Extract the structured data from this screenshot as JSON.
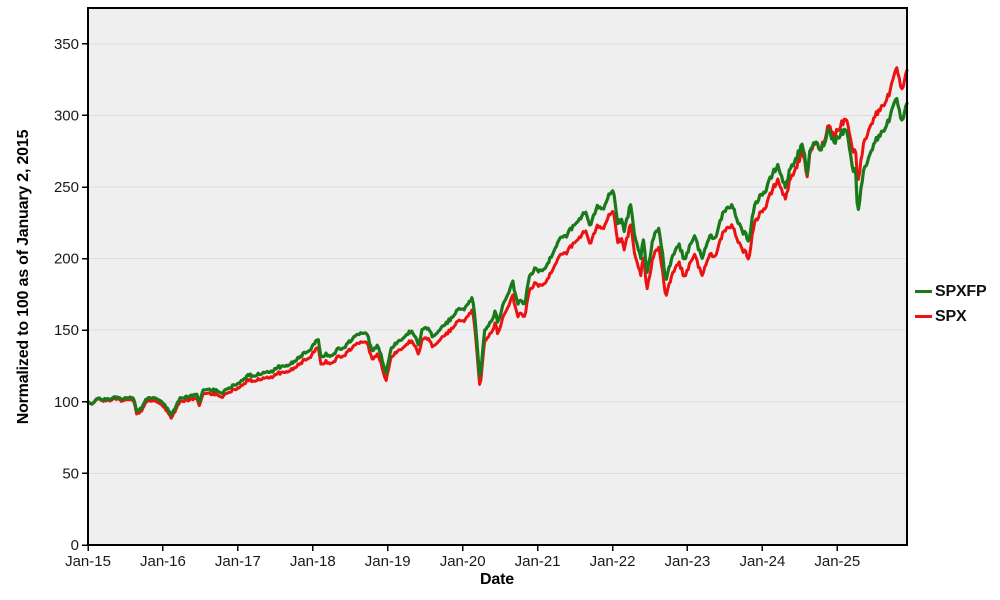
{
  "chart_data": {
    "type": "line",
    "title": "",
    "xlabel": "Date",
    "ylabel": "Normalized to 100 as of January 2, 2015",
    "grid": "horizontal",
    "legend_position": "right-outside",
    "x_range": [
      2015.0,
      2025.93
    ],
    "y_range": [
      0,
      375
    ],
    "y_ticks": [
      0,
      50,
      100,
      150,
      200,
      250,
      300,
      350
    ],
    "x_ticks": [
      {
        "label": "Jan-15",
        "year": 2015
      },
      {
        "label": "Jan-16",
        "year": 2016
      },
      {
        "label": "Jan-17",
        "year": 2017
      },
      {
        "label": "Jan-18",
        "year": 2018
      },
      {
        "label": "Jan-19",
        "year": 2019
      },
      {
        "label": "Jan-20",
        "year": 2020
      },
      {
        "label": "Jan-21",
        "year": 2021
      },
      {
        "label": "Jan-22",
        "year": 2022
      },
      {
        "label": "Jan-23",
        "year": 2023
      },
      {
        "label": "Jan-24",
        "year": 2024
      },
      {
        "label": "Jan-25",
        "year": 2025
      }
    ],
    "colors": {
      "plot_bg": "#efefef",
      "grid": "#dcdcdc",
      "frame": "#000000",
      "tick": "#000000"
    },
    "x": [
      2015.0,
      2015.05,
      2015.13,
      2015.21,
      2015.29,
      2015.38,
      2015.46,
      2015.54,
      2015.61,
      2015.65,
      2015.71,
      2015.79,
      2015.88,
      2015.96,
      2016.04,
      2016.11,
      2016.17,
      2016.22,
      2016.29,
      2016.38,
      2016.46,
      2016.48,
      2016.54,
      2016.63,
      2016.71,
      2016.79,
      2016.88,
      2016.96,
      2017.04,
      2017.13,
      2017.21,
      2017.29,
      2017.38,
      2017.46,
      2017.54,
      2017.63,
      2017.71,
      2017.79,
      2017.88,
      2017.96,
      2018.07,
      2018.11,
      2018.17,
      2018.25,
      2018.33,
      2018.42,
      2018.5,
      2018.58,
      2018.72,
      2018.79,
      2018.87,
      2018.98,
      2019.04,
      2019.13,
      2019.21,
      2019.32,
      2019.41,
      2019.46,
      2019.55,
      2019.6,
      2019.71,
      2019.79,
      2019.88,
      2019.96,
      2020.04,
      2020.13,
      2020.18,
      2020.23,
      2020.29,
      2020.38,
      2020.44,
      2020.47,
      2020.54,
      2020.63,
      2020.67,
      2020.73,
      2020.79,
      2020.83,
      2020.88,
      2020.96,
      2021.04,
      2021.13,
      2021.21,
      2021.29,
      2021.38,
      2021.46,
      2021.54,
      2021.63,
      2021.71,
      2021.79,
      2021.88,
      2021.96,
      2022.01,
      2022.07,
      2022.13,
      2022.15,
      2022.24,
      2022.3,
      2022.38,
      2022.41,
      2022.46,
      2022.54,
      2022.62,
      2022.71,
      2022.79,
      2022.88,
      2022.96,
      2023.04,
      2023.09,
      2023.2,
      2023.29,
      2023.38,
      2023.46,
      2023.58,
      2023.63,
      2023.71,
      2023.82,
      2023.88,
      2023.96,
      2024.04,
      2024.13,
      2024.21,
      2024.3,
      2024.38,
      2024.46,
      2024.54,
      2024.6,
      2024.63,
      2024.71,
      2024.79,
      2024.88,
      2024.96,
      2025.04,
      2025.13,
      2025.21,
      2025.24,
      2025.27,
      2025.34,
      2025.42,
      2025.5,
      2025.58,
      2025.67,
      2025.75,
      2025.8,
      2025.84,
      2025.88,
      2025.93
    ],
    "series": [
      {
        "name": "SPXFP",
        "color": "#1a7a1a",
        "stroke_width": 3.2,
        "values": [
          100.0,
          98.3,
          102.8,
          101.3,
          102.2,
          103.5,
          101.4,
          103.5,
          102.6,
          93.4,
          95.3,
          103.0,
          103.2,
          101.5,
          96.5,
          91.0,
          96.1,
          102.4,
          102.7,
          104.4,
          104.5,
          99.5,
          108.2,
          108.2,
          108.1,
          106.1,
          109.8,
          111.9,
          114.0,
          118.4,
          118.4,
          119.5,
          121.1,
          121.7,
          124.2,
          124.4,
          126.9,
          129.8,
          133.6,
          135.0,
          145.2,
          130.5,
          133.5,
          131.2,
          136.9,
          137.7,
          142.7,
          147.2,
          148.7,
          135.3,
          140.2,
          119.5,
          137.5,
          141.7,
          144.3,
          150.0,
          140.2,
          149.9,
          152.0,
          144.9,
          151.9,
          155.1,
          160.4,
          165.1,
          164.9,
          173.1,
          151.0,
          114.5,
          149.0,
          155.8,
          163.9,
          153.9,
          167.5,
          179.4,
          183.9,
          168.4,
          171.0,
          167.7,
          185.8,
          192.7,
          190.6,
          195.8,
          204.1,
          214.9,
          216.2,
          221.1,
          226.2,
          233.0,
          222.0,
          237.4,
          235.6,
          246.0,
          247.6,
          225.3,
          225.8,
          218.4,
          237.3,
          213.5,
          201.0,
          213.6,
          189.1,
          213.5,
          222.0,
          185.3,
          200.1,
          210.8,
          198.5,
          210.7,
          215.8,
          200.0,
          215.4,
          215.9,
          229.8,
          237.0,
          232.8,
          221.4,
          213.0,
          233.9,
          243.9,
          246.8,
          258.6,
          265.3,
          249.7,
          263.7,
          271.2,
          279.6,
          257.0,
          276.2,
          280.6,
          276.1,
          290.1,
          281.6,
          287.6,
          290.1,
          259.1,
          267.1,
          230.6,
          258.1,
          272.1,
          281.1,
          287.1,
          295.1,
          305.1,
          312.1,
          298.1,
          296.1,
          308.0
        ]
      },
      {
        "name": "SPX",
        "color": "#ee1111",
        "stroke_width": 3.0,
        "values": [
          100.0,
          98.0,
          102.3,
          100.6,
          101.3,
          102.4,
          100.2,
          102.2,
          101.2,
          91.5,
          93.3,
          101.0,
          101.1,
          99.3,
          94.3,
          88.9,
          93.9,
          100.1,
          100.3,
          101.9,
          102.0,
          97.1,
          105.6,
          105.5,
          105.3,
          103.3,
          106.8,
          108.8,
          110.7,
          114.9,
          114.8,
          115.8,
          117.2,
          117.7,
          120.0,
          120.1,
          122.4,
          125.1,
          128.7,
          129.9,
          139.6,
          125.4,
          128.3,
          126.0,
          131.4,
          132.1,
          136.8,
          141.0,
          142.4,
          129.5,
          134.1,
          114.2,
          131.4,
          135.3,
          137.7,
          143.1,
          133.7,
          142.9,
          144.8,
          138.0,
          144.6,
          147.6,
          152.6,
          157.0,
          156.7,
          164.5,
          143.5,
          108.7,
          141.5,
          147.9,
          155.6,
          146.0,
          158.9,
          170.1,
          174.3,
          159.6,
          162.0,
          158.9,
          176.0,
          182.5,
          180.4,
          185.2,
          193.0,
          203.1,
          204.3,
          208.8,
          213.5,
          219.8,
          209.3,
          223.7,
          221.9,
          231.6,
          233.1,
          212.0,
          212.5,
          205.5,
          223.3,
          200.8,
          189.0,
          200.8,
          177.8,
          200.7,
          208.7,
          174.2,
          188.1,
          198.2,
          186.6,
          198.1,
          202.9,
          188.0,
          202.6,
          203.1,
          216.2,
          223.0,
          219.0,
          208.3,
          200.5,
          221.9,
          231.8,
          235.4,
          247.6,
          255.3,
          241.5,
          256.4,
          265.3,
          274.9,
          255.0,
          274.4,
          280.0,
          277.2,
          293.1,
          285.8,
          293.5,
          298.0,
          272.5,
          280.4,
          252.0,
          277.0,
          291.5,
          299.0,
          305.0,
          313.0,
          324.0,
          334.0,
          320.0,
          318.0,
          331.0
        ]
      }
    ]
  },
  "legend": {
    "items": [
      {
        "label": "SPXFP"
      },
      {
        "label": "SPX"
      }
    ]
  }
}
